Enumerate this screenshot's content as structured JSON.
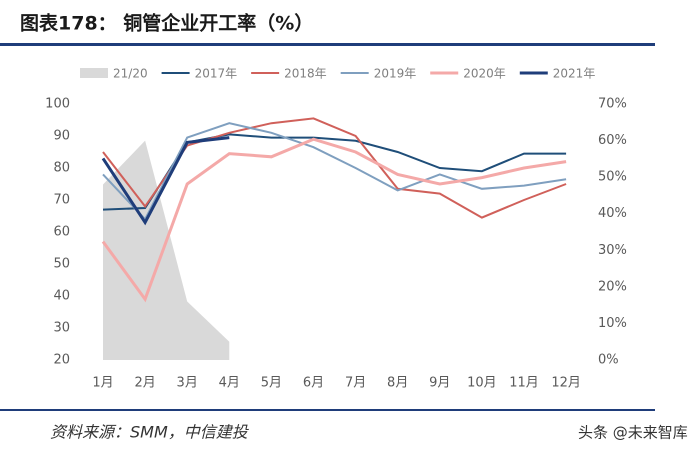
{
  "chart_data": {
    "type": "line",
    "title": "图表178： 铜管企业开工率（%）",
    "categories": [
      "1月",
      "2月",
      "3月",
      "4月",
      "5月",
      "6月",
      "7月",
      "8月",
      "9月",
      "10月",
      "11月",
      "12月"
    ],
    "series": [
      {
        "name": "21/20",
        "type": "area",
        "axis": "y2",
        "color": "#d9d9d9",
        "values": [
          48,
          60,
          16,
          5,
          null,
          null,
          null,
          null,
          null,
          null,
          null,
          null
        ]
      },
      {
        "name": "2017年",
        "color": "#1f4e79",
        "values": [
          67,
          67.5,
          88,
          90.5,
          89.5,
          89.5,
          88.5,
          85,
          80,
          79,
          84.5,
          84.5
        ]
      },
      {
        "name": "2018年",
        "color": "#d0605a",
        "values": [
          85,
          68,
          87,
          91,
          94,
          95.5,
          90,
          73.5,
          72,
          64.5,
          70,
          75
        ]
      },
      {
        "name": "2019年",
        "color": "#7f9fbf",
        "values": [
          78,
          64,
          89.5,
          94,
          91,
          86.5,
          80,
          73,
          78,
          73.5,
          74.5,
          76.5
        ]
      },
      {
        "name": "2020年",
        "color": "#f4a9a8",
        "width": 3,
        "values": [
          57,
          39,
          75,
          84.5,
          83.5,
          89,
          85,
          78,
          75,
          77,
          80,
          82
        ]
      },
      {
        "name": "2021年",
        "color": "#1f3d7a",
        "width": 3,
        "values": [
          83,
          63,
          88,
          89.5,
          null,
          null,
          null,
          null,
          null,
          null,
          null,
          null
        ]
      }
    ],
    "ylim": [
      20,
      100
    ],
    "yticks": [
      20,
      30,
      40,
      50,
      60,
      70,
      80,
      90,
      100
    ],
    "y2lim": [
      0,
      70
    ],
    "y2ticks": [
      {
        "value": 0,
        "label": "0%"
      },
      {
        "value": 10,
        "label": "10%"
      },
      {
        "value": 20,
        "label": "20%"
      },
      {
        "value": 30,
        "label": "30%"
      },
      {
        "value": 40,
        "label": "40%"
      },
      {
        "value": 50,
        "label": "50%"
      },
      {
        "value": 60,
        "label": "60%"
      },
      {
        "value": 70,
        "label": "70%"
      }
    ],
    "grid": false,
    "legend": "top",
    "source": "资料来源：SMM，中信建投",
    "watermark": "头条 @未来智库"
  }
}
